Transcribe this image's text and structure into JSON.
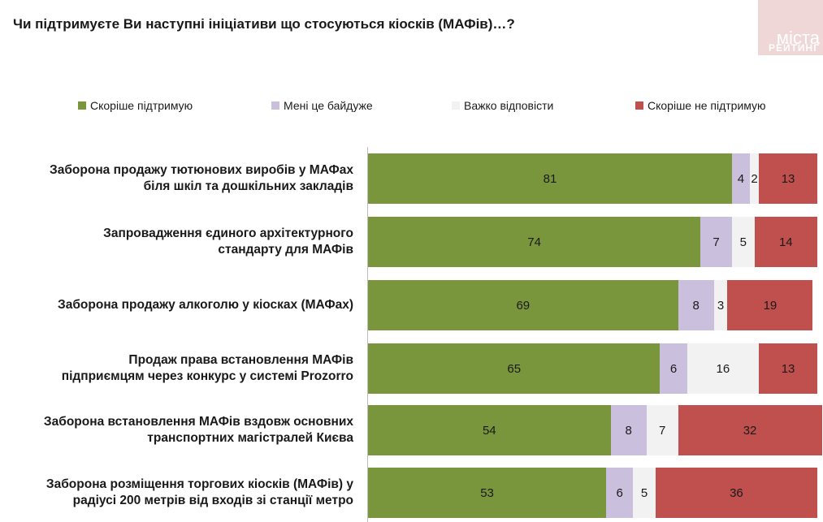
{
  "title": "Чи підтримуєте Ви наступні ініціативи що стосуються кіосків (МАФів)…?",
  "logo": {
    "line1": "міста",
    "line2": "РЕЙТИНГ"
  },
  "colors": {
    "support": "#7a963d",
    "indifferent": "#cbbfde",
    "hard_to_say": "#f2f2f2",
    "not_support": "#c0504d"
  },
  "chart_data": {
    "type": "bar",
    "orientation": "horizontal",
    "stacked": true,
    "legend_position": "top",
    "xlim": [
      0,
      100
    ],
    "categories": [
      "Заборона продажу тютюнових виробів у МАФах\nбіля шкіл та дошкільних закладів",
      "Запровадження єдиного архітектурного\nстандарту для МАФів",
      "Заборона продажу алкоголю у кіосках (МАФах)",
      "Продаж права встановлення МАФів\nпідприємцям через конкурс у системі Prozorro",
      "Заборона встановлення МАФів вздовж основних\nтранспортних магістралей Києва",
      "Заборона розміщення торгових кіосків (МАФів) у\nрадіусі 200 метрів від входів зі станції метро"
    ],
    "series": [
      {
        "name": "Скоріше підтримую",
        "color": "#7a963d",
        "values": [
          81,
          74,
          69,
          65,
          54,
          53
        ]
      },
      {
        "name": "Мені це байдуже",
        "color": "#cbbfde",
        "values": [
          4,
          7,
          8,
          6,
          8,
          6
        ]
      },
      {
        "name": "Важко відповісти",
        "color": "#f2f2f2",
        "values": [
          2,
          5,
          3,
          16,
          7,
          5
        ]
      },
      {
        "name": "Скоріше не підтримую",
        "color": "#c0504d",
        "values": [
          13,
          14,
          19,
          13,
          32,
          36
        ]
      }
    ]
  }
}
